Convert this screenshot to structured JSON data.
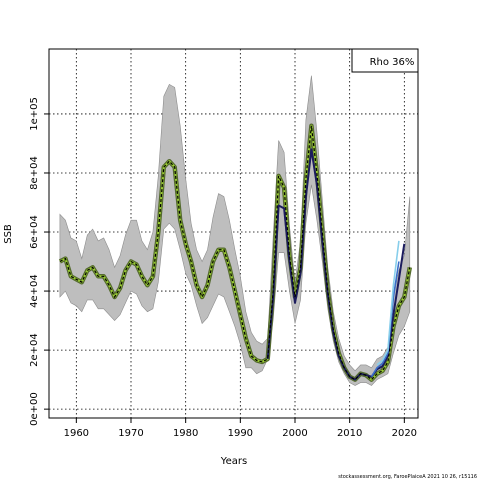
{
  "chart_data": {
    "type": "line",
    "title": "",
    "xlabel": "Years",
    "ylabel": "SSB",
    "xlim": [
      1955,
      2022.5
    ],
    "ylim": [
      -3000,
      122000
    ],
    "x_ticks": [
      1960,
      1970,
      1980,
      1990,
      2000,
      2010,
      2020
    ],
    "y_ticks": [
      0,
      20000,
      40000,
      60000,
      80000,
      100000
    ],
    "y_tick_labels": [
      "0e+00",
      "2e+04",
      "4e+04",
      "6e+04",
      "8e+04",
      "1e+05"
    ],
    "grid": true,
    "legend_text": "Rho 36%",
    "legend_position": "top-right",
    "footer": "stockassessment.org, FaroePlaiceA 2021 10 26, r15116",
    "colors": {
      "band": "#bebebe",
      "band_edge": "#8c8c8c",
      "main_line": "#556b2f",
      "peel_line": "#9acd32",
      "peel_dark": "#1c1c5e",
      "peel_blue": "#3a6ec8",
      "peel_light": "#87ceeb",
      "dashed": "#000000",
      "grid": "#000000"
    },
    "band": {
      "x": [
        1957,
        1958,
        1959,
        1960,
        1961,
        1962,
        1963,
        1964,
        1965,
        1966,
        1967,
        1968,
        1969,
        1970,
        1971,
        1972,
        1973,
        1974,
        1975,
        1976,
        1977,
        1978,
        1979,
        1980,
        1981,
        1982,
        1983,
        1984,
        1985,
        1986,
        1987,
        1988,
        1989,
        1990,
        1991,
        1992,
        1993,
        1994,
        1995,
        1996,
        1997,
        1998,
        1999,
        2000,
        2001,
        2002,
        2003,
        2004,
        2005,
        2006,
        2007,
        2008,
        2009,
        2010,
        2011,
        2012,
        2013,
        2014,
        2015,
        2016,
        2017,
        2018,
        2019,
        2020,
        2021
      ],
      "upper": [
        66000,
        64000,
        58000,
        57000,
        51000,
        59000,
        61000,
        57000,
        58000,
        54000,
        48000,
        52000,
        59000,
        64000,
        64000,
        57000,
        54000,
        60000,
        79000,
        106000,
        110000,
        109000,
        96000,
        78000,
        63000,
        54000,
        50000,
        54000,
        65000,
        73000,
        72000,
        64000,
        54000,
        45000,
        33000,
        26000,
        23000,
        22000,
        24000,
        58000,
        91000,
        87000,
        62000,
        43000,
        57000,
        98000,
        113000,
        94000,
        71000,
        48000,
        33000,
        24000,
        18000,
        15000,
        13000,
        15000,
        15000,
        14000,
        17000,
        18000,
        21000,
        38000,
        47000,
        52000,
        72000
      ],
      "lower": [
        38000,
        40000,
        36000,
        35000,
        33000,
        37000,
        37000,
        34000,
        34000,
        32000,
        30000,
        32000,
        36000,
        40000,
        39000,
        35000,
        33000,
        34000,
        43000,
        61000,
        63000,
        61000,
        54000,
        46000,
        42000,
        35000,
        29000,
        31000,
        35000,
        39000,
        38000,
        33000,
        28000,
        22000,
        14000,
        14000,
        12000,
        13000,
        17000,
        30000,
        53000,
        53000,
        40000,
        29000,
        37000,
        63000,
        76000,
        64000,
        50000,
        34000,
        23000,
        16000,
        12000,
        9000,
        8000,
        9000,
        9000,
        8000,
        10000,
        11000,
        12000,
        19000,
        25000,
        28000,
        33000
      ]
    },
    "series": [
      {
        "role": "main",
        "x": [
          1957,
          1958,
          1959,
          1960,
          1961,
          1962,
          1963,
          1964,
          1965,
          1966,
          1967,
          1968,
          1969,
          1970,
          1971,
          1972,
          1973,
          1974,
          1975,
          1976,
          1977,
          1978,
          1979,
          1980,
          1981,
          1982,
          1983,
          1984,
          1985,
          1986,
          1987,
          1988,
          1989,
          1990,
          1991,
          1992,
          1993,
          1994,
          1995,
          1996,
          1997,
          1998,
          1999,
          2000,
          2001,
          2002,
          2003,
          2004,
          2005,
          2006,
          2007,
          2008,
          2009,
          2010,
          2011,
          2012,
          2013,
          2014,
          2015,
          2016,
          2017,
          2018,
          2019,
          2020,
          2021
        ],
        "values": [
          50000,
          51000,
          45000,
          44000,
          43000,
          47000,
          48000,
          45000,
          45000,
          42000,
          38000,
          41000,
          47000,
          50000,
          49000,
          45000,
          42000,
          45000,
          60000,
          82000,
          84000,
          82000,
          64000,
          56000,
          50000,
          42000,
          38000,
          42000,
          50000,
          54000,
          54000,
          48000,
          40000,
          32000,
          24000,
          18000,
          16500,
          16000,
          17000,
          40000,
          79000,
          75000,
          52000,
          38000,
          48000,
          78000,
          96000,
          80000,
          60000,
          40000,
          27000,
          19000,
          14000,
          11000,
          10000,
          12000,
          11500,
          10000,
          12000,
          13000,
          16000,
          28000,
          35000,
          38000,
          48000
        ]
      },
      {
        "role": "peel_dark",
        "x": [
          1995,
          1996,
          1997,
          1998,
          1999,
          2000,
          2001,
          2002,
          2003,
          2004,
          2005,
          2006,
          2007,
          2008,
          2009,
          2010,
          2011,
          2012,
          2013,
          2014,
          2015,
          2016,
          2017,
          2018,
          2019,
          2020
        ],
        "values": [
          17000,
          38000,
          69000,
          68000,
          50000,
          36000,
          46000,
          72000,
          88000,
          76000,
          57000,
          39000,
          26000,
          18000,
          14000,
          11000,
          10000,
          12000,
          11500,
          11000,
          13500,
          14500,
          18000,
          32000,
          44000,
          56000
        ]
      },
      {
        "role": "peel_blue",
        "x": [
          2014,
          2015,
          2016,
          2017,
          2018,
          2019
        ],
        "values": [
          11000,
          14000,
          15500,
          19000,
          38000,
          50000
        ]
      },
      {
        "role": "peel_light",
        "x": [
          2015,
          2016,
          2017,
          2018,
          2019
        ],
        "values": [
          15000,
          16500,
          20000,
          42000,
          57000
        ]
      }
    ]
  }
}
